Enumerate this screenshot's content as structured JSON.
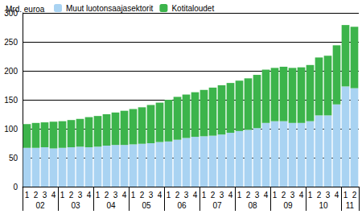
{
  "chart_data": {
    "type": "bar",
    "y_label": "Mrd. euroa",
    "categories": [
      "1",
      "2",
      "3",
      "4",
      "1",
      "2",
      "3",
      "4",
      "1",
      "2",
      "3",
      "4",
      "1",
      "2",
      "3",
      "4",
      "1",
      "2",
      "3",
      "4",
      "1",
      "2",
      "3",
      "4",
      "1",
      "2",
      "3",
      "4",
      "1",
      "2",
      "3",
      "4",
      "1",
      "2",
      "3",
      "4",
      "1",
      "2"
    ],
    "category_years": [
      "02",
      null,
      null,
      null,
      "03",
      null,
      null,
      null,
      "04",
      null,
      null,
      null,
      "05",
      null,
      null,
      null,
      "06",
      null,
      null,
      null,
      "07",
      null,
      null,
      null,
      "08",
      null,
      null,
      null,
      "09",
      null,
      null,
      null,
      "10",
      null,
      null,
      null,
      "11",
      null
    ],
    "series": [
      {
        "name": "Muut luotonsaajasektorit",
        "color": "#a9d3f2",
        "values": [
          67,
          67,
          68,
          66,
          67,
          68,
          69,
          68,
          69,
          71,
          72,
          72,
          73,
          74,
          75,
          77,
          78,
          81,
          84,
          86,
          87,
          88,
          90,
          93,
          96,
          98,
          101,
          110,
          113,
          113,
          110,
          110,
          113,
          123,
          123,
          142,
          173,
          170
        ]
      },
      {
        "name": "Kotitaloudet",
        "color": "#3cb44b",
        "values": [
          41,
          43,
          43,
          46,
          46,
          47,
          48,
          52,
          53,
          54,
          56,
          59,
          61,
          63,
          66,
          68,
          72,
          74,
          75,
          77,
          80,
          83,
          85,
          86,
          87,
          89,
          92,
          92,
          92,
          94,
          95,
          96,
          97,
          100,
          103,
          102,
          106,
          106
        ]
      }
    ],
    "stacked": true,
    "legend": "top-left",
    "grid": true,
    "ylim": [
      0,
      300
    ],
    "yticks": [
      0,
      50,
      100,
      150,
      200,
      250,
      300
    ]
  }
}
